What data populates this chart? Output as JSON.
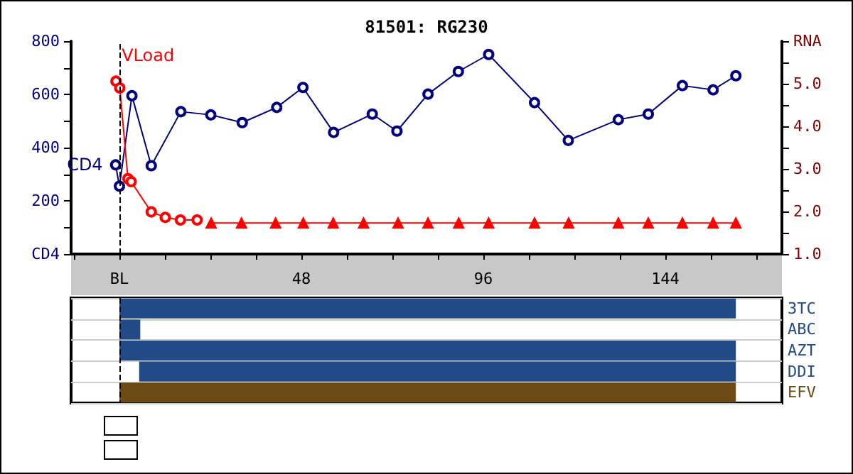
{
  "chart_data": [
    {
      "type": "line",
      "title": "81501: RG230",
      "xlim": [
        -12.75,
        174.75
      ],
      "xticks": [
        {
          "value": -12,
          "label": null
        },
        {
          "value": 0,
          "label": "BL"
        },
        {
          "value": 12,
          "label": null
        },
        {
          "value": 24,
          "label": null
        },
        {
          "value": 36,
          "label": null
        },
        48,
        {
          "value": 60,
          "label": null
        },
        {
          "value": 72,
          "label": null
        },
        {
          "value": 84,
          "label": null
        },
        96,
        {
          "value": 108,
          "label": null
        },
        {
          "value": 120,
          "label": null
        },
        {
          "value": 132,
          "label": null
        },
        144,
        {
          "value": 156,
          "label": null
        },
        {
          "value": 168,
          "label": null
        }
      ],
      "ylim": [
        0,
        800
      ],
      "yticks": [
        {
          "value": 0,
          "label": "CD4"
        },
        {
          "value": 100,
          "label": null
        },
        200,
        {
          "value": 300,
          "label": null
        },
        400,
        {
          "value": 500,
          "label": null
        },
        600,
        {
          "value": 700,
          "label": null
        },
        800
      ],
      "y2lim": [
        1,
        6
      ],
      "y2ticks": [
        {
          "value": 1,
          "label": "1.0"
        },
        {
          "value": 1.5,
          "label": null
        },
        {
          "value": 2,
          "label": "2.0"
        },
        {
          "value": 2.5,
          "label": null
        },
        {
          "value": 3,
          "label": "3.0"
        },
        {
          "value": 3.5,
          "label": null
        },
        {
          "value": 4,
          "label": "4.0"
        },
        {
          "value": 4.5,
          "label": null
        },
        {
          "value": 5,
          "label": "5.0"
        },
        {
          "value": 5.5,
          "label": null
        },
        {
          "value": 6,
          "label": "RNA"
        }
      ],
      "grid": false,
      "legend": false,
      "ref_lines": [
        {
          "axis": "x",
          "value": 0,
          "color": "#000000",
          "line_style": "dashed"
        }
      ],
      "series": [
        {
          "name": "CD4",
          "color": "#000080",
          "marker": "circle",
          "x": [
            -1,
            0,
            3.3,
            8.4,
            16.2,
            24.1,
            32.4,
            41.5,
            48.4,
            56.5,
            66.7,
            73.2,
            81.4,
            89.4,
            97.4,
            109.5,
            118.4,
            131.6,
            139.5,
            148.5,
            156.6,
            162.6
          ],
          "values": [
            335,
            255,
            595,
            332,
            535,
            523,
            494,
            551,
            626,
            457,
            526,
            462,
            601,
            686,
            750,
            569,
            427,
            505,
            526,
            633,
            617,
            670
          ]
        },
        {
          "name": "VLoad",
          "color": "#ff0000",
          "axis": "y2",
          "marker": "circle",
          "x": [
            -0.9,
            0.1,
            2.25,
            3.1,
            8.4,
            12.1,
            16.1,
            20.5
          ],
          "values": [
            5.06,
            4.9,
            2.77,
            2.7,
            1.99,
            1.86,
            1.8,
            1.8
          ]
        },
        {
          "color": "#ff0000",
          "axis": "y2",
          "marker": "triangle",
          "x": [
            24.2,
            32.2,
            41.2,
            48.5,
            56.4,
            64.4,
            73.5,
            81.4,
            89.5,
            97.4,
            109.5,
            118.5,
            131.6,
            139.5,
            148.5,
            156.6,
            162.6
          ],
          "values": [
            1.73,
            1.73,
            1.73,
            1.73,
            1.73,
            1.73,
            1.73,
            1.73,
            1.73,
            1.73,
            1.73,
            1.73,
            1.73,
            1.73,
            1.73,
            1.73,
            1.73
          ]
        }
      ]
    },
    {
      "type": "bar",
      "orientation": "horizontal",
      "categories": [
        "3TC",
        "ABC",
        "AZT",
        "DDI",
        "EFV"
      ],
      "base": [
        0,
        0,
        0,
        5.2,
        0
      ],
      "values": [
        162.6,
        5.5,
        162.6,
        157.4,
        162.6
      ],
      "colors": [
        "#224a87",
        "#224a87",
        "#224a87",
        "#224a87",
        "#6b4a14"
      ],
      "xlim": [
        -12.75,
        174.75
      ],
      "tick_labels": "y",
      "ref_lines": [
        {
          "axis": "x",
          "value": 0,
          "color": "#000000",
          "line_style": "dashed"
        }
      ]
    }
  ]
}
